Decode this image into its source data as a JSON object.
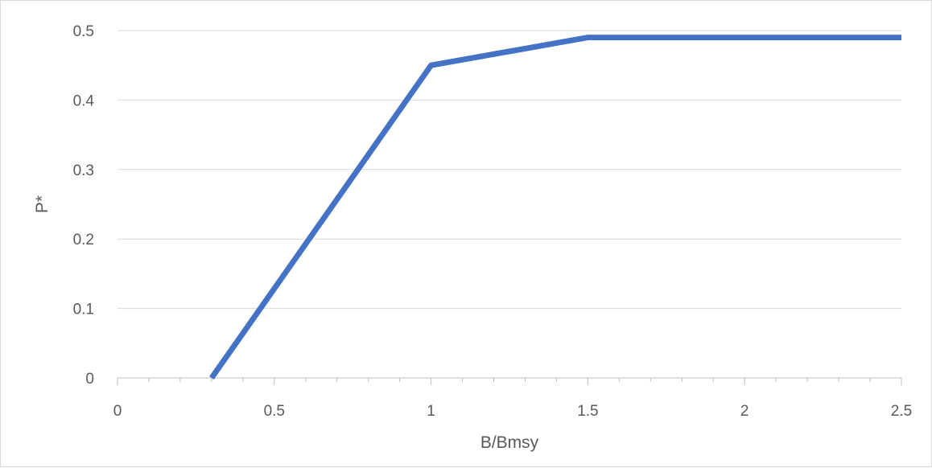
{
  "chart_data": {
    "type": "line",
    "title": "",
    "xlabel": "B/Bmsy",
    "ylabel": "P*",
    "xlim": [
      0,
      2.5
    ],
    "ylim": [
      0,
      0.5
    ],
    "x_ticks": [
      0,
      0.5,
      1,
      1.5,
      2,
      2.5
    ],
    "x_tick_labels": [
      "0",
      "0.5",
      "1",
      "1.5",
      "2",
      "2.5"
    ],
    "y_ticks": [
      0,
      0.1,
      0.2,
      0.3,
      0.4,
      0.5
    ],
    "y_tick_labels": [
      "0",
      "0.1",
      "0.2",
      "0.3",
      "0.4",
      "0.5"
    ],
    "x_minor_tick_step": 0.1,
    "grid": "horizontal",
    "legend": "none",
    "series": [
      {
        "color": "#4472c4",
        "x": [
          0.3,
          1.0,
          1.5,
          2.5
        ],
        "y": [
          0.0,
          0.45,
          0.49,
          0.49
        ]
      }
    ]
  }
}
